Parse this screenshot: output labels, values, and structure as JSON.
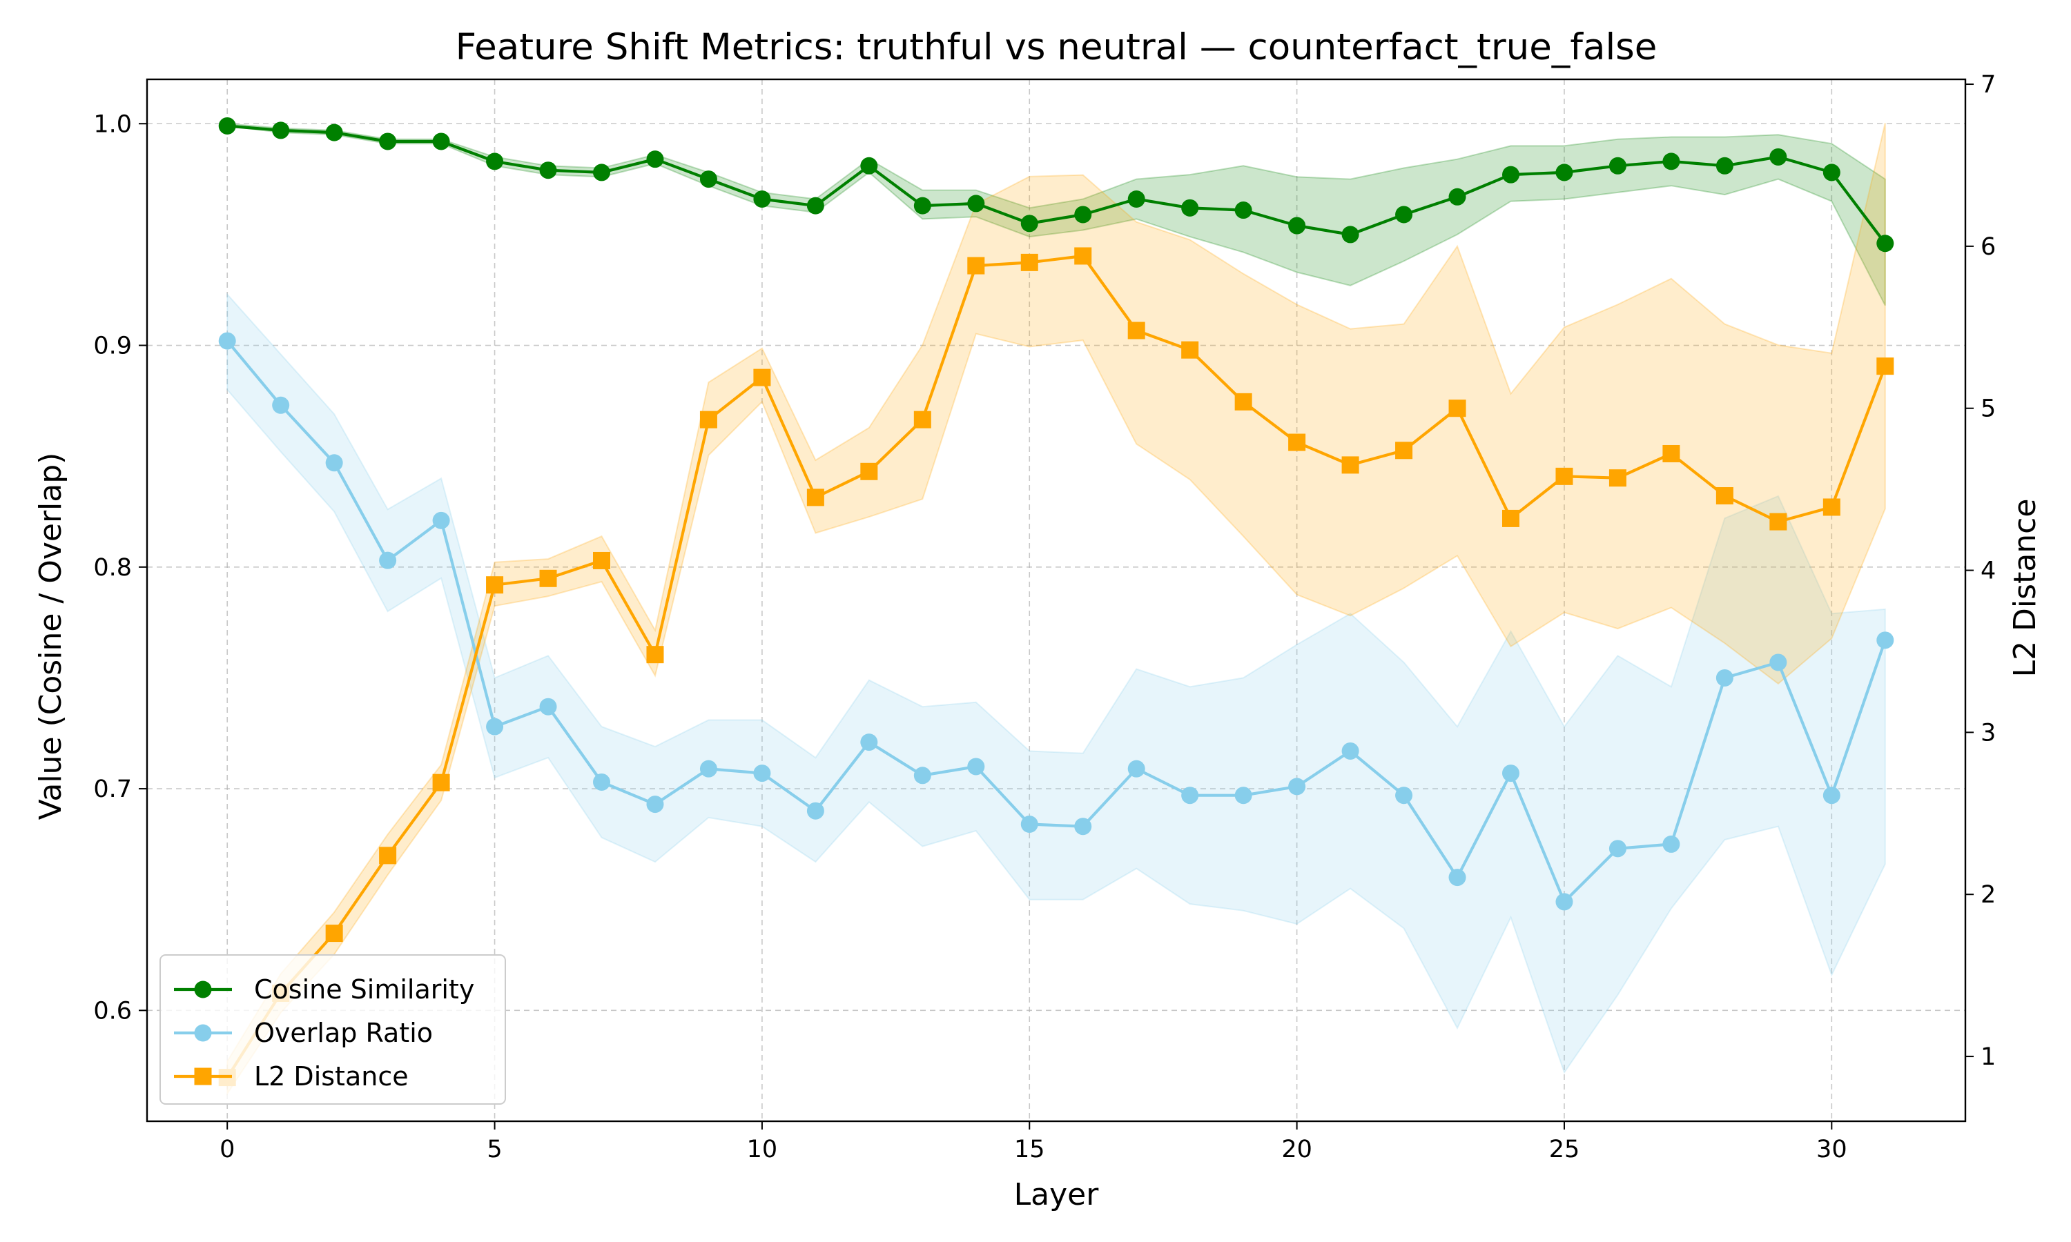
{
  "chart_data": {
    "type": "line",
    "title": "Feature Shift Metrics: truthful vs neutral — counterfact_true_false",
    "xlabel": "Layer",
    "ylabel_left": "Value (Cosine / Overlap)",
    "ylabel_right": "L2 Distance",
    "xlim": [
      -1.5,
      32.5
    ],
    "ylim_left": [
      0.55,
      1.02
    ],
    "ylim_right": [
      0.6,
      7.03
    ],
    "x_ticks": [
      0,
      5,
      10,
      15,
      20,
      25,
      30
    ],
    "x_tick_labels": [
      "0",
      "5",
      "10",
      "15",
      "20",
      "25",
      "30"
    ],
    "y_left_ticks": [
      0.6,
      0.7,
      0.8,
      0.9,
      1.0
    ],
    "y_left_tick_labels": [
      "0.6",
      "0.7",
      "0.8",
      "0.9",
      "1.0"
    ],
    "y_right_ticks": [
      1,
      2,
      3,
      4,
      5,
      6,
      7
    ],
    "y_right_tick_labels": [
      "1",
      "2",
      "3",
      "4",
      "5",
      "6",
      "7"
    ],
    "grid": true,
    "legend_position": "lower-left",
    "x": [
      0,
      1,
      2,
      3,
      4,
      5,
      6,
      7,
      8,
      9,
      10,
      11,
      12,
      13,
      14,
      15,
      16,
      17,
      18,
      19,
      20,
      21,
      22,
      23,
      24,
      25,
      26,
      27,
      28,
      29,
      30,
      31
    ],
    "series": [
      {
        "name": "Cosine Similarity",
        "axis": "left",
        "color": "#008000",
        "marker": "circle",
        "values": [
          0.999,
          0.997,
          0.996,
          0.992,
          0.992,
          0.983,
          0.979,
          0.978,
          0.984,
          0.975,
          0.966,
          0.963,
          0.981,
          0.963,
          0.964,
          0.955,
          0.959,
          0.966,
          0.962,
          0.961,
          0.954,
          0.95,
          0.959,
          0.967,
          0.977,
          0.978,
          0.981,
          0.983,
          0.981,
          0.985,
          0.978,
          0.946
        ],
        "lower": [
          0.999,
          0.996,
          0.995,
          0.991,
          0.991,
          0.981,
          0.977,
          0.976,
          0.982,
          0.972,
          0.963,
          0.96,
          0.978,
          0.957,
          0.958,
          0.949,
          0.952,
          0.957,
          0.949,
          0.942,
          0.933,
          0.927,
          0.938,
          0.95,
          0.965,
          0.966,
          0.969,
          0.972,
          0.968,
          0.975,
          0.965,
          0.918
        ],
        "upper": [
          1.0,
          0.998,
          0.997,
          0.993,
          0.993,
          0.985,
          0.981,
          0.98,
          0.986,
          0.978,
          0.969,
          0.966,
          0.984,
          0.97,
          0.97,
          0.962,
          0.966,
          0.975,
          0.977,
          0.981,
          0.976,
          0.975,
          0.98,
          0.984,
          0.99,
          0.99,
          0.993,
          0.994,
          0.994,
          0.995,
          0.991,
          0.975
        ]
      },
      {
        "name": "Overlap Ratio",
        "axis": "left",
        "color": "#87CEEB",
        "marker": "circle",
        "values": [
          0.902,
          0.873,
          0.847,
          0.803,
          0.821,
          0.728,
          0.737,
          0.703,
          0.693,
          0.709,
          0.707,
          0.69,
          0.721,
          0.706,
          0.71,
          0.684,
          0.683,
          0.709,
          0.697,
          0.697,
          0.701,
          0.717,
          0.697,
          0.66,
          0.707,
          0.649,
          0.673,
          0.675,
          0.75,
          0.757,
          0.697,
          0.767
        ],
        "lower": [
          0.88,
          0.852,
          0.825,
          0.78,
          0.795,
          0.705,
          0.714,
          0.678,
          0.667,
          0.687,
          0.683,
          0.667,
          0.694,
          0.674,
          0.681,
          0.65,
          0.65,
          0.664,
          0.648,
          0.645,
          0.639,
          0.655,
          0.637,
          0.592,
          0.642,
          0.572,
          0.607,
          0.646,
          0.677,
          0.683,
          0.616,
          0.666
        ],
        "upper": [
          0.923,
          0.896,
          0.869,
          0.826,
          0.84,
          0.75,
          0.76,
          0.728,
          0.719,
          0.731,
          0.731,
          0.714,
          0.749,
          0.737,
          0.739,
          0.717,
          0.716,
          0.754,
          0.746,
          0.75,
          0.765,
          0.779,
          0.757,
          0.728,
          0.771,
          0.728,
          0.76,
          0.746,
          0.822,
          0.832,
          0.779,
          0.781
        ]
      },
      {
        "name": "L2 Distance",
        "axis": "right",
        "color": "#FFA500",
        "marker": "square",
        "values": [
          0.87,
          1.39,
          1.76,
          2.24,
          2.69,
          3.91,
          3.95,
          4.06,
          3.48,
          4.93,
          5.19,
          4.45,
          4.61,
          4.93,
          5.88,
          5.9,
          5.94,
          5.48,
          5.36,
          5.04,
          4.79,
          4.65,
          4.74,
          5.0,
          4.32,
          4.58,
          4.57,
          4.72,
          4.46,
          4.3,
          4.39,
          5.26
        ],
        "lower": [
          0.77,
          1.27,
          1.63,
          2.12,
          2.58,
          3.78,
          3.84,
          3.93,
          3.35,
          4.71,
          5.04,
          4.23,
          4.33,
          4.44,
          5.46,
          5.38,
          5.42,
          4.78,
          4.56,
          4.21,
          3.85,
          3.72,
          3.89,
          4.09,
          3.53,
          3.74,
          3.64,
          3.77,
          3.55,
          3.3,
          3.58,
          4.38
        ],
        "upper": [
          0.97,
          1.51,
          1.89,
          2.37,
          2.8,
          4.05,
          4.07,
          4.21,
          3.63,
          5.16,
          5.37,
          4.68,
          4.88,
          5.39,
          6.26,
          6.43,
          6.44,
          6.15,
          6.04,
          5.83,
          5.64,
          5.49,
          5.52,
          6.0,
          5.09,
          5.5,
          5.64,
          5.8,
          5.52,
          5.39,
          5.34,
          6.76
        ]
      }
    ]
  }
}
